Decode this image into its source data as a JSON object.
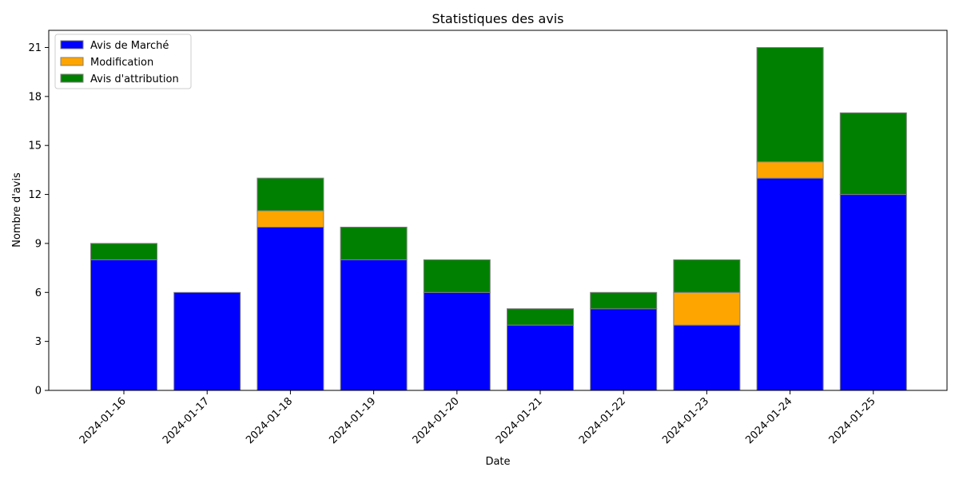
{
  "chart_data": {
    "type": "bar",
    "stacked": true,
    "title": "Statistiques des avis",
    "xlabel": "Date",
    "ylabel": "Nombre d'avis",
    "categories": [
      "2024-01-16",
      "2024-01-17",
      "2024-01-18",
      "2024-01-19",
      "2024-01-20",
      "2024-01-21",
      "2024-01-22",
      "2024-01-23",
      "2024-01-24",
      "2024-01-25"
    ],
    "series": [
      {
        "name": "Avis de Marché",
        "color": "#0000ff",
        "values": [
          8,
          6,
          10,
          8,
          6,
          4,
          5,
          4,
          13,
          12
        ]
      },
      {
        "name": "Modification",
        "color": "#ffa500",
        "values": [
          0,
          0,
          1,
          0,
          0,
          0,
          0,
          2,
          1,
          0
        ]
      },
      {
        "name": "Avis d'attribution",
        "color": "#008000",
        "values": [
          1,
          0,
          2,
          2,
          2,
          1,
          1,
          2,
          7,
          5
        ]
      }
    ],
    "ylim": [
      0,
      22.05
    ],
    "yticks": [
      "0",
      "3",
      "6",
      "9",
      "12",
      "15",
      "18",
      "21"
    ],
    "legend_position": "top-left",
    "grid": false,
    "bar_edge_color": "#808080"
  }
}
